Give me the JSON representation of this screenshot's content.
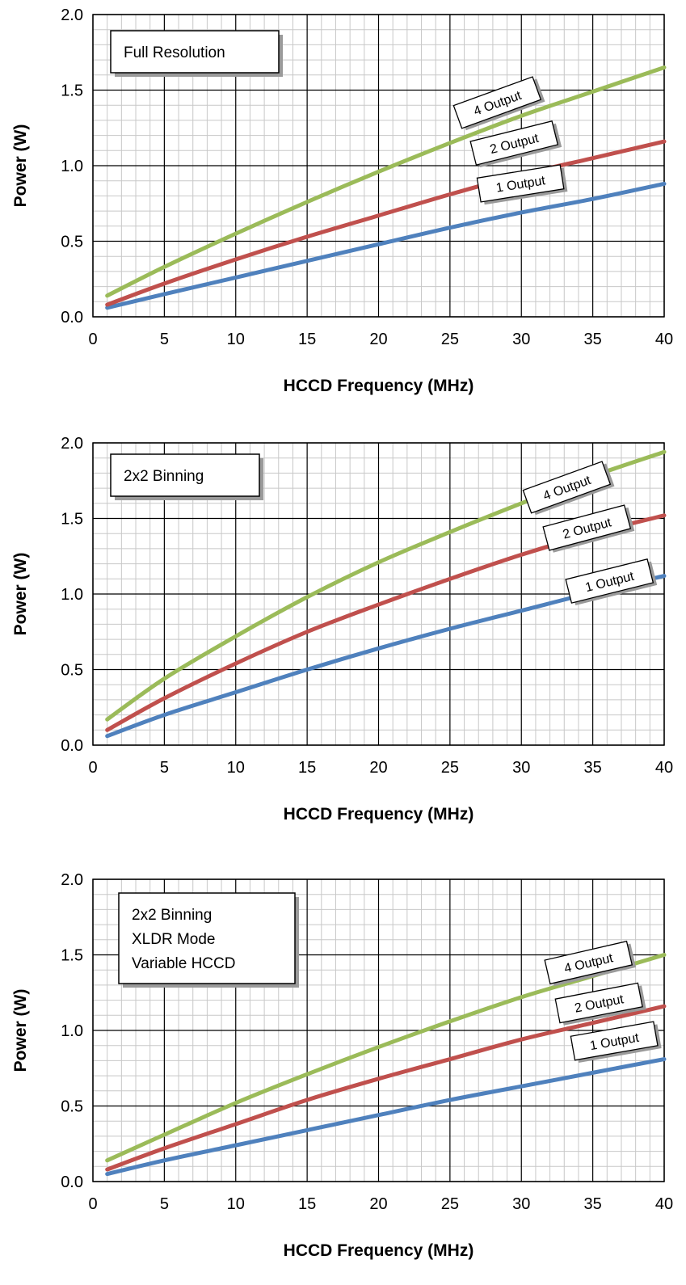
{
  "colors": {
    "one_output": "#4f81bd",
    "two_output": "#c0504d",
    "four_output": "#9bbb59",
    "major_grid": "#000000",
    "minor_grid": "#c8c8c8"
  },
  "chart_data": [
    {
      "type": "line",
      "annotation": [
        "Full Resolution"
      ],
      "xlabel": "HCCD Frequency (MHz)",
      "ylabel": "Power  (W)",
      "xlim": [
        0,
        40
      ],
      "ylim": [
        0,
        2.0
      ],
      "x_ticks": [
        "0",
        "5",
        "10",
        "15",
        "20",
        "25",
        "30",
        "35",
        "40"
      ],
      "y_ticks": [
        "0.0",
        "0.5",
        "1.0",
        "1.5",
        "2.0"
      ],
      "minor_grid": true,
      "x": [
        1,
        5,
        10,
        15,
        20,
        25,
        30,
        35,
        40
      ],
      "series": [
        {
          "name": "1 Output",
          "color": "#4f81bd",
          "values": [
            0.06,
            0.15,
            0.26,
            0.37,
            0.48,
            0.59,
            0.69,
            0.78,
            0.88
          ]
        },
        {
          "name": "2 Output",
          "color": "#c0504d",
          "values": [
            0.08,
            0.22,
            0.38,
            0.53,
            0.67,
            0.81,
            0.94,
            1.05,
            1.16
          ]
        },
        {
          "name": "4 Output",
          "color": "#9bbb59",
          "values": [
            0.14,
            0.33,
            0.55,
            0.76,
            0.96,
            1.15,
            1.33,
            1.49,
            1.65
          ]
        }
      ],
      "series_labels": [
        "4 Output",
        "2 Output",
        "1 Output"
      ]
    },
    {
      "type": "line",
      "annotation": [
        "2x2 Binning"
      ],
      "xlabel": "HCCD Frequency (MHz)",
      "ylabel": "Power  (W)",
      "xlim": [
        0,
        40
      ],
      "ylim": [
        0,
        2.0
      ],
      "x_ticks": [
        "0",
        "5",
        "10",
        "15",
        "20",
        "25",
        "30",
        "35",
        "40"
      ],
      "y_ticks": [
        "0.0",
        "0.5",
        "1.0",
        "1.5",
        "2.0"
      ],
      "minor_grid": true,
      "x": [
        1,
        5,
        10,
        15,
        20,
        25,
        30,
        35,
        40
      ],
      "series": [
        {
          "name": "1 Output",
          "color": "#4f81bd",
          "values": [
            0.06,
            0.2,
            0.35,
            0.5,
            0.64,
            0.77,
            0.89,
            1.01,
            1.12
          ]
        },
        {
          "name": "2 Output",
          "color": "#c0504d",
          "values": [
            0.1,
            0.31,
            0.54,
            0.75,
            0.93,
            1.1,
            1.26,
            1.4,
            1.52
          ]
        },
        {
          "name": "4 Output",
          "color": "#9bbb59",
          "values": [
            0.17,
            0.44,
            0.72,
            0.98,
            1.21,
            1.41,
            1.6,
            1.78,
            1.94
          ]
        }
      ],
      "series_labels": [
        "4 Output",
        "2 Output",
        "1 Output"
      ]
    },
    {
      "type": "line",
      "annotation": [
        "2x2 Binning",
        "XLDR Mode",
        "Variable HCCD"
      ],
      "xlabel": "HCCD Frequency (MHz)",
      "ylabel": "Power  (W)",
      "xlim": [
        0,
        40
      ],
      "ylim": [
        0,
        2.0
      ],
      "x_ticks": [
        "0",
        "5",
        "10",
        "15",
        "20",
        "25",
        "30",
        "35",
        "40"
      ],
      "y_ticks": [
        "0.0",
        "0.5",
        "1.0",
        "1.5",
        "2.0"
      ],
      "minor_grid": true,
      "x": [
        1,
        5,
        10,
        15,
        20,
        25,
        30,
        35,
        40
      ],
      "series": [
        {
          "name": "1 Output",
          "color": "#4f81bd",
          "values": [
            0.05,
            0.14,
            0.24,
            0.34,
            0.44,
            0.54,
            0.63,
            0.72,
            0.81
          ]
        },
        {
          "name": "2 Output",
          "color": "#c0504d",
          "values": [
            0.08,
            0.22,
            0.38,
            0.54,
            0.68,
            0.81,
            0.94,
            1.05,
            1.16
          ]
        },
        {
          "name": "4 Output",
          "color": "#9bbb59",
          "values": [
            0.14,
            0.31,
            0.52,
            0.71,
            0.89,
            1.06,
            1.22,
            1.36,
            1.5
          ]
        }
      ],
      "series_labels": [
        "4 Output",
        "2 Output",
        "1 Output"
      ]
    }
  ]
}
